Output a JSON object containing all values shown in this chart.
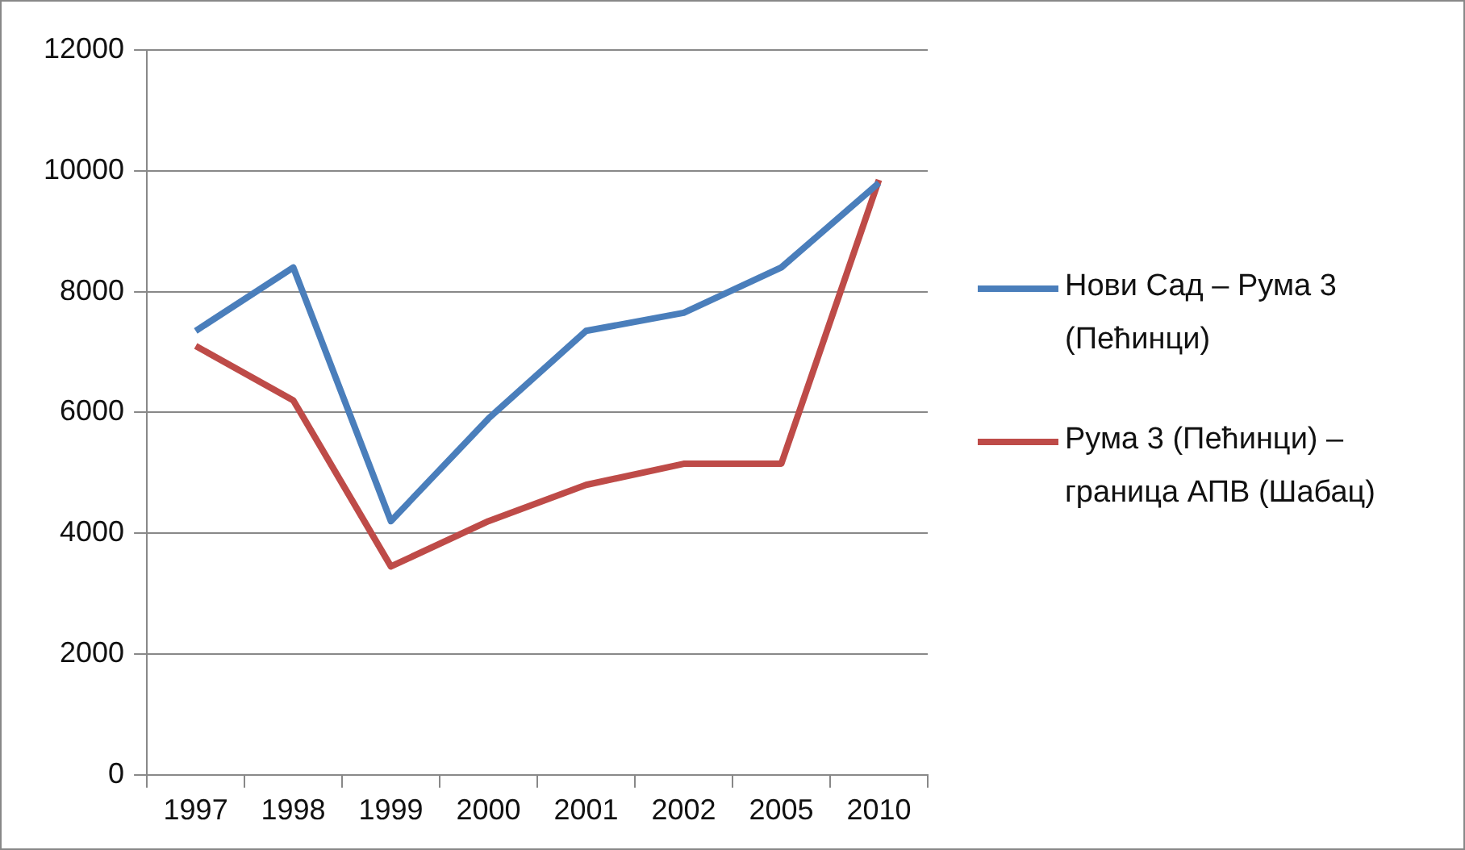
{
  "chart_data": {
    "type": "line",
    "categories": [
      "1997",
      "1998",
      "1999",
      "2000",
      "2001",
      "2002",
      "2005",
      "2010"
    ],
    "series": [
      {
        "name": "Нови Сад – Рума 3 (Пећинци)",
        "color": "#4a7ebb",
        "values": [
          7350,
          8400,
          4200,
          5900,
          7350,
          7650,
          8400,
          9800
        ]
      },
      {
        "name": "Рума 3 (Пећинци) – граница АПВ (Шабац)",
        "color": "#be4b48",
        "values": [
          7100,
          6200,
          3450,
          4200,
          4800,
          5150,
          5150,
          9850
        ]
      }
    ],
    "ylim": [
      0,
      12000
    ],
    "yticks": [
      0,
      2000,
      4000,
      6000,
      8000,
      10000,
      12000
    ],
    "grid": "y",
    "legend": "right",
    "marker": "none",
    "line_style": "solid"
  }
}
